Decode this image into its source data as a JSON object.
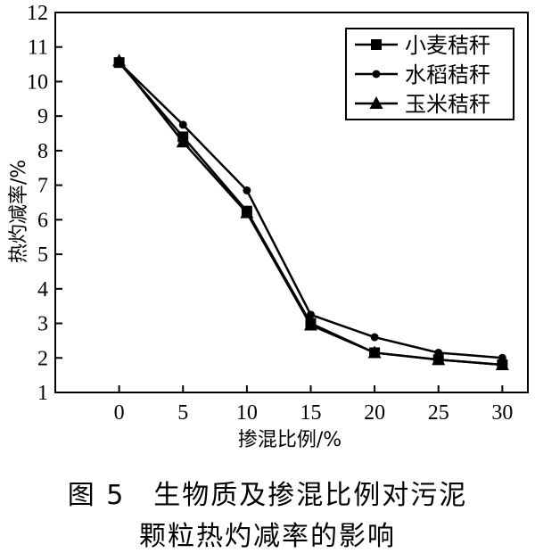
{
  "chart_data": {
    "type": "line",
    "xlabel": "掺混比例/%",
    "ylabel": "热灼减率/%",
    "x": [
      0,
      5,
      10,
      15,
      20,
      25,
      30
    ],
    "xlim": [
      -5,
      32
    ],
    "ylim": [
      1,
      12
    ],
    "xticks": [
      0,
      5,
      10,
      15,
      20,
      25,
      30
    ],
    "yticks": [
      1,
      2,
      3,
      4,
      5,
      6,
      7,
      8,
      9,
      10,
      11,
      12
    ],
    "grid": false,
    "legend_position": "top-right",
    "series": [
      {
        "name": "小麦秸秆",
        "marker": "square",
        "values": [
          10.55,
          8.4,
          6.25,
          3.0,
          2.15,
          1.95,
          1.8
        ]
      },
      {
        "name": "水稻秸秆",
        "marker": "circle",
        "values": [
          10.55,
          8.75,
          6.85,
          3.25,
          2.6,
          2.15,
          2.0
        ]
      },
      {
        "name": "玉米秸秆",
        "marker": "triangle",
        "values": [
          10.6,
          8.25,
          6.2,
          2.95,
          2.15,
          1.95,
          1.8
        ]
      }
    ]
  },
  "caption": {
    "line1": "图 5　生物质及掺混比例对污泥",
    "line2": "颗粒热灼减率的影响"
  }
}
